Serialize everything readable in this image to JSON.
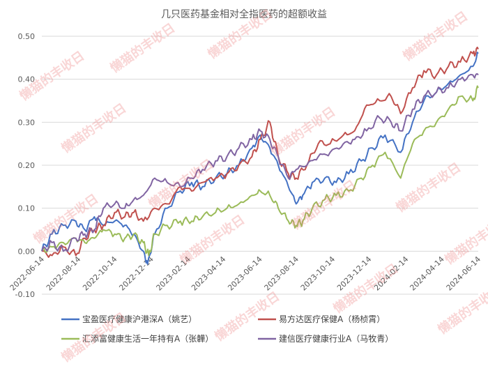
{
  "chart_data": {
    "type": "line",
    "title": "几只医药基金相对全指医药的超额收益",
    "xlabel": "",
    "ylabel": "",
    "ylim": [
      -0.1,
      0.5
    ],
    "yticks": [
      -0.1,
      0.0,
      0.1,
      0.2,
      0.3,
      0.4,
      0.5
    ],
    "ytick_labels": [
      "-0.10",
      "0.00",
      "0.10",
      "0.20",
      "0.30",
      "0.40",
      "0.50"
    ],
    "x_tick_labels": [
      "2022-06-14",
      "2022-08-14",
      "2022-10-14",
      "2022-12-14",
      "2023-02-14",
      "2023-04-14",
      "2023-06-14",
      "2023-08-14",
      "2023-10-14",
      "2023-12-14",
      "2024-02-14",
      "2024-04-14",
      "2024-06-14"
    ],
    "x_range": [
      "2022-06-14",
      "2024-06-14"
    ],
    "grid": "horizontal",
    "legend_position": "bottom",
    "watermark": "懒猫的丰收日",
    "series": [
      {
        "name": "宝盈医疗健康沪港深A（姚艺）",
        "color": "#4472C4",
        "x": [
          "2022-06-14",
          "2022-07-01",
          "2022-07-20",
          "2022-08-10",
          "2022-08-25",
          "2022-09-10",
          "2022-09-25",
          "2022-10-14",
          "2022-10-31",
          "2022-11-15",
          "2022-12-01",
          "2022-12-08",
          "2022-12-20",
          "2023-01-10",
          "2023-02-01",
          "2023-02-20",
          "2023-03-10",
          "2023-04-01",
          "2023-04-20",
          "2023-05-10",
          "2023-06-01",
          "2023-06-15",
          "2023-07-01",
          "2023-07-15",
          "2023-08-01",
          "2023-08-14",
          "2023-08-25",
          "2023-09-10",
          "2023-10-01",
          "2023-10-20",
          "2023-11-10",
          "2023-12-01",
          "2023-12-20",
          "2024-01-10",
          "2024-02-05",
          "2024-02-25",
          "2024-03-15",
          "2024-04-05",
          "2024-04-25",
          "2024-05-15",
          "2024-06-05",
          "2024-06-14"
        ],
        "values": [
          0.0,
          0.04,
          0.06,
          0.07,
          0.05,
          0.08,
          0.06,
          0.07,
          0.06,
          0.04,
          0.0,
          -0.03,
          0.04,
          0.1,
          0.14,
          0.16,
          0.15,
          0.17,
          0.18,
          0.2,
          0.24,
          0.27,
          0.24,
          0.2,
          0.15,
          0.11,
          0.13,
          0.16,
          0.17,
          0.16,
          0.18,
          0.21,
          0.24,
          0.27,
          0.23,
          0.3,
          0.35,
          0.37,
          0.39,
          0.41,
          0.43,
          0.46
        ]
      },
      {
        "name": "易方达医疗保健A（杨桢霄）",
        "color": "#C0504D",
        "x": [
          "2022-06-14",
          "2022-07-01",
          "2022-07-20",
          "2022-08-10",
          "2022-08-25",
          "2022-09-10",
          "2022-09-25",
          "2022-10-14",
          "2022-10-31",
          "2022-11-15",
          "2022-12-01",
          "2022-12-20",
          "2023-01-10",
          "2023-02-01",
          "2023-02-20",
          "2023-03-10",
          "2023-04-01",
          "2023-04-20",
          "2023-05-10",
          "2023-06-01",
          "2023-06-15",
          "2023-07-01",
          "2023-07-15",
          "2023-08-01",
          "2023-08-14",
          "2023-09-01",
          "2023-09-20",
          "2023-10-10",
          "2023-11-01",
          "2023-11-20",
          "2023-12-10",
          "2024-01-01",
          "2024-01-20",
          "2024-02-05",
          "2024-02-25",
          "2024-03-15",
          "2024-04-05",
          "2024-04-25",
          "2024-05-15",
          "2024-06-05",
          "2024-06-14"
        ],
        "values": [
          0.0,
          -0.01,
          0.01,
          -0.01,
          0.03,
          0.05,
          0.06,
          0.09,
          0.08,
          0.09,
          0.07,
          0.1,
          0.11,
          0.15,
          0.14,
          0.16,
          0.17,
          0.18,
          0.2,
          0.22,
          0.26,
          0.3,
          0.22,
          0.18,
          0.17,
          0.2,
          0.25,
          0.25,
          0.27,
          0.28,
          0.34,
          0.35,
          0.36,
          0.32,
          0.38,
          0.42,
          0.41,
          0.43,
          0.44,
          0.46,
          0.47
        ]
      },
      {
        "name": "汇添富健康生活一年持有A（张韡）",
        "color": "#9BBB59",
        "x": [
          "2022-06-14",
          "2022-07-01",
          "2022-07-20",
          "2022-08-10",
          "2022-08-25",
          "2022-09-10",
          "2022-09-25",
          "2022-10-14",
          "2022-10-31",
          "2022-11-15",
          "2022-12-01",
          "2022-12-10",
          "2022-12-20",
          "2023-01-10",
          "2023-02-01",
          "2023-02-20",
          "2023-03-10",
          "2023-04-01",
          "2023-04-20",
          "2023-05-10",
          "2023-06-01",
          "2023-06-15",
          "2023-07-01",
          "2023-07-15",
          "2023-08-01",
          "2023-08-14",
          "2023-08-25",
          "2023-09-10",
          "2023-10-01",
          "2023-10-20",
          "2023-11-10",
          "2023-12-01",
          "2023-12-20",
          "2024-01-10",
          "2024-02-05",
          "2024-02-25",
          "2024-03-15",
          "2024-04-05",
          "2024-04-25",
          "2024-05-15",
          "2024-06-05",
          "2024-06-14"
        ],
        "values": [
          0.0,
          0.01,
          0.02,
          0.03,
          0.02,
          0.03,
          0.05,
          0.04,
          0.03,
          0.04,
          0.02,
          -0.01,
          0.04,
          0.06,
          0.07,
          0.07,
          0.08,
          0.09,
          0.1,
          0.11,
          0.13,
          0.14,
          0.13,
          0.1,
          0.07,
          0.06,
          0.07,
          0.1,
          0.12,
          0.13,
          0.14,
          0.17,
          0.2,
          0.23,
          0.17,
          0.25,
          0.28,
          0.3,
          0.33,
          0.36,
          0.35,
          0.38
        ]
      },
      {
        "name": "建信医疗健康行业A（马牧青）",
        "color": "#8064A2",
        "x": [
          "2022-06-14",
          "2022-07-01",
          "2022-07-20",
          "2022-08-10",
          "2022-08-25",
          "2022-09-10",
          "2022-09-25",
          "2022-10-14",
          "2022-10-31",
          "2022-11-15",
          "2022-12-01",
          "2022-12-20",
          "2023-01-10",
          "2023-02-01",
          "2023-02-20",
          "2023-03-10",
          "2023-04-01",
          "2023-04-20",
          "2023-05-10",
          "2023-06-01",
          "2023-06-15",
          "2023-07-01",
          "2023-07-15",
          "2023-08-01",
          "2023-08-14",
          "2023-09-01",
          "2023-09-20",
          "2023-10-10",
          "2023-11-01",
          "2023-11-20",
          "2023-12-10",
          "2024-01-01",
          "2024-01-20",
          "2024-02-05",
          "2024-02-25",
          "2024-03-15",
          "2024-04-05",
          "2024-04-25",
          "2024-05-15",
          "2024-06-05",
          "2024-06-14"
        ],
        "values": [
          0.0,
          0.02,
          0.0,
          0.03,
          0.04,
          0.05,
          0.1,
          0.11,
          0.1,
          0.12,
          0.13,
          0.17,
          0.16,
          0.15,
          0.17,
          0.19,
          0.21,
          0.22,
          0.24,
          0.26,
          0.28,
          0.26,
          0.22,
          0.17,
          0.19,
          0.2,
          0.22,
          0.23,
          0.25,
          0.26,
          0.28,
          0.31,
          0.3,
          0.28,
          0.33,
          0.36,
          0.37,
          0.38,
          0.4,
          0.41,
          0.41
        ]
      }
    ]
  }
}
